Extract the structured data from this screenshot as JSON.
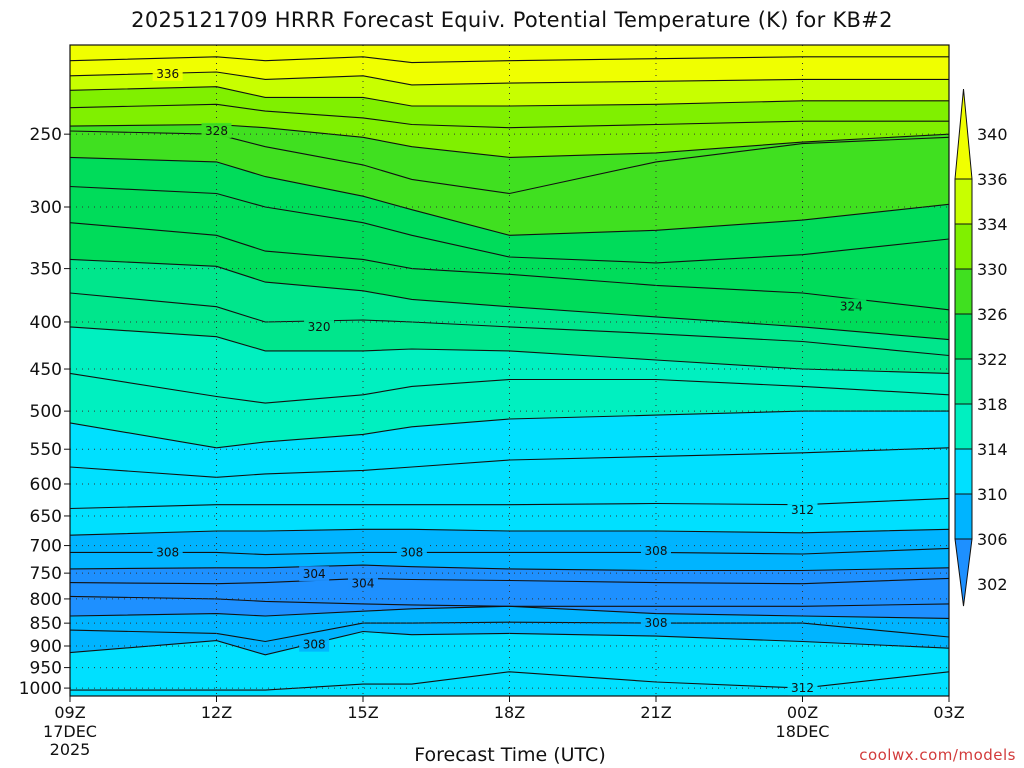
{
  "chart_data": {
    "type": "heatmap",
    "title": "2025121709 HRRR Forecast Equiv. Potential Temperature (K) for KB#2",
    "xlabel": "Forecast Time (UTC)",
    "ylabel": "",
    "credit": "coolwx.com/models",
    "y_axis": {
      "scale": "log",
      "inverted": true,
      "range": [
        1020,
        200
      ],
      "ticks": [
        250,
        300,
        350,
        400,
        450,
        500,
        550,
        600,
        650,
        700,
        750,
        800,
        850,
        900,
        950,
        1000
      ],
      "tick_labels": [
        "250",
        "300",
        "350",
        "400",
        "450",
        "500",
        "550",
        "600",
        "650",
        "700",
        "750",
        "800",
        "850",
        "900",
        "950",
        "1000"
      ]
    },
    "x_axis": {
      "range_hours": [
        0,
        18
      ],
      "ticks": [
        {
          "h": 0,
          "label": "09Z",
          "sub1": "17DEC",
          "sub2": "2025"
        },
        {
          "h": 3,
          "label": "12Z",
          "sub1": "",
          "sub2": ""
        },
        {
          "h": 6,
          "label": "15Z",
          "sub1": "",
          "sub2": ""
        },
        {
          "h": 9,
          "label": "18Z",
          "sub1": "",
          "sub2": ""
        },
        {
          "h": 12,
          "label": "21Z",
          "sub1": "",
          "sub2": ""
        },
        {
          "h": 15,
          "label": "00Z",
          "sub1": "18DEC",
          "sub2": ""
        },
        {
          "h": 18,
          "label": "03Z",
          "sub1": "",
          "sub2": ""
        }
      ]
    },
    "grid": "dotted",
    "colorbar": {
      "levels": [
        302,
        306,
        310,
        314,
        318,
        322,
        326,
        330,
        334,
        336,
        340
      ],
      "labels": [
        "302",
        "306",
        "310",
        "314",
        "318",
        "322",
        "326",
        "330",
        "334",
        "336",
        "340"
      ],
      "colors": [
        "#1e90ff",
        "#00b4ff",
        "#00e0ff",
        "#00f0c0",
        "#00e68c",
        "#00dc5a",
        "#40e020",
        "#80f000",
        "#c8ff00",
        "#f0ff00"
      ]
    },
    "times": [
      0,
      3,
      4,
      6,
      7,
      9,
      12,
      15,
      18
    ],
    "levels": [
      {
        "theta": 338,
        "p": [
          208,
          206,
          208,
          206,
          209,
          208,
          207,
          206,
          206
        ]
      },
      {
        "theta": 336,
        "p": [
          216,
          214,
          218,
          216,
          221,
          220,
          219,
          218,
          218
        ]
      },
      {
        "theta": 334,
        "p": [
          224,
          222,
          228,
          228,
          233,
          233,
          232,
          230,
          230
        ]
      },
      {
        "theta": 332,
        "p": [
          234,
          232,
          236,
          240,
          244,
          246,
          244,
          242,
          242
        ]
      },
      {
        "theta": 330,
        "p": [
          245,
          244,
          246,
          252,
          258,
          265,
          262,
          255,
          250
        ]
      },
      {
        "theta": 328,
        "p": [
          248,
          250,
          258,
          270,
          280,
          290,
          268,
          256,
          252
        ]
      },
      {
        "theta": 326,
        "p": [
          265,
          268,
          278,
          292,
          302,
          322,
          318,
          310,
          298
        ]
      },
      {
        "theta": 325,
        "p": [
          285,
          290,
          300,
          312,
          322,
          340,
          345,
          338,
          325
        ]
      },
      {
        "theta": 324,
        "p": [
          312,
          322,
          335,
          342,
          350,
          355,
          365,
          372,
          388
        ]
      },
      {
        "theta": 322,
        "p": [
          342,
          348,
          362,
          370,
          378,
          385,
          395,
          405,
          418
        ]
      },
      {
        "theta": 320,
        "p": [
          372,
          385,
          400,
          398,
          400,
          405,
          412,
          420,
          435
        ]
      },
      {
        "theta": 318,
        "p": [
          405,
          415,
          430,
          430,
          428,
          430,
          440,
          450,
          455
        ]
      },
      {
        "theta": 316,
        "p": [
          455,
          482,
          490,
          480,
          470,
          462,
          462,
          470,
          480
        ]
      },
      {
        "theta": 314,
        "p": [
          515,
          548,
          540,
          530,
          520,
          510,
          505,
          500,
          500
        ]
      },
      {
        "theta": 313,
        "p": [
          575,
          590,
          585,
          580,
          575,
          565,
          560,
          555,
          548
        ]
      },
      {
        "theta": 312,
        "p": [
          638,
          632,
          632,
          632,
          632,
          632,
          630,
          632,
          622
        ]
      },
      {
        "theta": 310,
        "p": [
          682,
          675,
          675,
          672,
          672,
          675,
          675,
          678,
          672
        ]
      },
      {
        "theta": 308,
        "p": [
          712,
          712,
          716,
          712,
          712,
          712,
          712,
          715,
          705
        ]
      },
      {
        "theta": 306,
        "p": [
          742,
          740,
          740,
          735,
          738,
          742,
          745,
          745,
          740
        ]
      },
      {
        "theta": 304,
        "p": [
          768,
          770,
          768,
          760,
          762,
          764,
          768,
          770,
          760
        ]
      }
    ],
    "lower_levels": [
      {
        "theta": 304,
        "p": [
          795,
          800,
          805,
          810,
          812,
          815,
          815,
          815,
          810
        ]
      },
      {
        "theta": 306,
        "p": [
          835,
          830,
          835,
          825,
          820,
          815,
          830,
          835,
          840
        ]
      },
      {
        "theta": 308,
        "p": [
          865,
          872,
          890,
          850,
          850,
          848,
          850,
          850,
          880
        ]
      },
      {
        "theta": 310,
        "p": [
          915,
          888,
          920,
          868,
          875,
          872,
          878,
          890,
          905
        ]
      },
      {
        "theta": 312,
        "p": [
          1005,
          1005,
          1005,
          990,
          990,
          960,
          985,
          1000,
          960
        ]
      }
    ],
    "contour_labels": [
      {
        "text": "336",
        "h": 2.0,
        "p": 215
      },
      {
        "text": "328",
        "h": 3.0,
        "p": 248
      },
      {
        "text": "324",
        "h": 16.0,
        "p": 385
      },
      {
        "text": "320",
        "h": 5.1,
        "p": 405
      },
      {
        "text": "312",
        "h": 15.0,
        "p": 640
      },
      {
        "text": "308",
        "h": 2.0,
        "p": 712
      },
      {
        "text": "308",
        "h": 7.0,
        "p": 712
      },
      {
        "text": "308",
        "h": 12.0,
        "p": 710
      },
      {
        "text": "304",
        "h": 5.0,
        "p": 752
      },
      {
        "text": "304",
        "h": 6.0,
        "p": 770
      },
      {
        "text": "308",
        "h": 12.0,
        "p": 850
      },
      {
        "text": "308",
        "h": 5.0,
        "p": 897
      },
      {
        "text": "312",
        "h": 15.0,
        "p": 1000
      }
    ]
  }
}
